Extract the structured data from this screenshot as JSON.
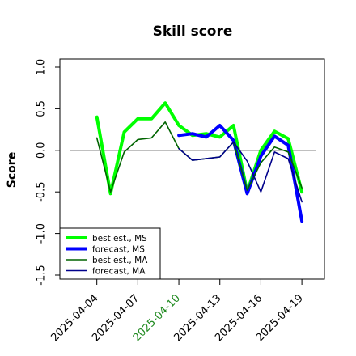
{
  "chart_data": {
    "type": "line",
    "title": "Skill score",
    "ylabel": "Score",
    "xlabel": "",
    "ylim": [
      -1.5,
      1.0
    ],
    "yticks": [
      -1.5,
      -1.0,
      -0.5,
      0.0,
      0.5,
      1.0
    ],
    "ytick_labels": [
      "-1.5",
      "-1.0",
      "-0.5",
      "0.0",
      "0.5",
      "1.0"
    ],
    "x_dates": [
      "2025-04-04",
      "2025-04-05",
      "2025-04-06",
      "2025-04-07",
      "2025-04-08",
      "2025-04-09",
      "2025-04-10",
      "2025-04-11",
      "2025-04-12",
      "2025-04-13",
      "2025-04-14",
      "2025-04-15",
      "2025-04-16",
      "2025-04-17",
      "2025-04-18",
      "2025-04-19"
    ],
    "xlim": [
      "2025-04-01",
      "2025-04-20"
    ],
    "xtick_labels": [
      "2025-04-04",
      "2025-04-07",
      "2025-04-10",
      "2025-04-13",
      "2025-04-16",
      "2025-04-19"
    ],
    "xtick_colors": [
      "#000000",
      "#000000",
      "#228B22",
      "#000000",
      "#000000",
      "#000000"
    ],
    "zero_line": true,
    "grid": false,
    "legend_position": "bottom-left",
    "series": [
      {
        "name": "best est., MS",
        "color": "#00ff00",
        "width": "thick",
        "values": [
          0.4,
          -0.52,
          0.22,
          0.38,
          0.38,
          0.57,
          0.3,
          0.18,
          0.2,
          0.16,
          0.3,
          -0.5,
          0.0,
          0.23,
          0.14,
          -0.5
        ]
      },
      {
        "name": "forecast, MS",
        "color": "#0000ff",
        "width": "thick",
        "values": [
          null,
          null,
          null,
          null,
          null,
          null,
          0.18,
          0.2,
          0.16,
          0.3,
          0.12,
          -0.52,
          -0.07,
          0.17,
          0.06,
          -0.85
        ]
      },
      {
        "name": "best est., MA",
        "color": "#006400",
        "width": "thin",
        "values": [
          0.15,
          -0.5,
          -0.02,
          0.13,
          0.15,
          0.34,
          0.02,
          -0.12,
          -0.1,
          -0.08,
          0.1,
          -0.48,
          -0.15,
          0.04,
          -0.02,
          -0.45
        ]
      },
      {
        "name": "forecast, MA",
        "color": "#00008b",
        "width": "thin",
        "values": [
          null,
          null,
          null,
          null,
          null,
          null,
          0.02,
          -0.12,
          -0.1,
          -0.08,
          0.1,
          -0.13,
          -0.5,
          -0.02,
          -0.1,
          -0.62
        ]
      }
    ]
  }
}
